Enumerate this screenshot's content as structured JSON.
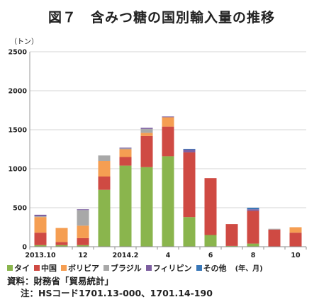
{
  "figure": {
    "title": "図７　含みつ糖の国別輸入量の推移",
    "unit_label": "（トン）",
    "x_unit": "(年、月)"
  },
  "colors": {
    "タイ": "#8ab54d",
    "中国": "#cf4a43",
    "ボリビア": "#f59e52",
    "ブラジル": "#a8a8a8",
    "フィリピン": "#7d5fa0",
    "その他": "#3a78b8"
  },
  "source": {
    "line1": "資料：財務省「貿易統計」",
    "line2": "注：HSコード1701.13-000、1701.14-190"
  },
  "chart_data": {
    "type": "bar",
    "stacked": true,
    "ylim": [
      0,
      2500
    ],
    "yticks": [
      0,
      500,
      1000,
      1500,
      2000,
      2500
    ],
    "ytick_labels": [
      "0",
      "500",
      "1000",
      "1500",
      "2000",
      "2500"
    ],
    "categories": [
      "2013.10",
      "11",
      "12",
      "2014.1",
      "2",
      "3",
      "4",
      "5",
      "6",
      "7",
      "8",
      "9",
      "10"
    ],
    "x_tick_labels": [
      "2013.10",
      "",
      "12",
      "",
      "2014.2",
      "",
      "4",
      "",
      "6",
      "",
      "8",
      "",
      "10"
    ],
    "legend_position": "bottom",
    "series": [
      {
        "name": "タイ",
        "values": [
          20,
          20,
          20,
          730,
          1040,
          1020,
          1160,
          380,
          150,
          10,
          40,
          0,
          0
        ]
      },
      {
        "name": "中国",
        "values": [
          160,
          40,
          90,
          170,
          110,
          400,
          380,
          830,
          730,
          280,
          420,
          220,
          180
        ]
      },
      {
        "name": "ボリビア",
        "values": [
          200,
          180,
          160,
          200,
          100,
          40,
          120,
          0,
          0,
          0,
          0,
          0,
          70
        ]
      },
      {
        "name": "ブラジル",
        "values": [
          10,
          0,
          200,
          70,
          10,
          50,
          0,
          0,
          0,
          0,
          0,
          10,
          0
        ]
      },
      {
        "name": "フィリピン",
        "values": [
          20,
          0,
          10,
          0,
          10,
          15,
          10,
          35,
          0,
          0,
          20,
          0,
          0
        ]
      },
      {
        "name": "その他",
        "values": [
          0,
          0,
          0,
          0,
          0,
          0,
          0,
          10,
          0,
          0,
          20,
          0,
          0
        ]
      }
    ]
  }
}
